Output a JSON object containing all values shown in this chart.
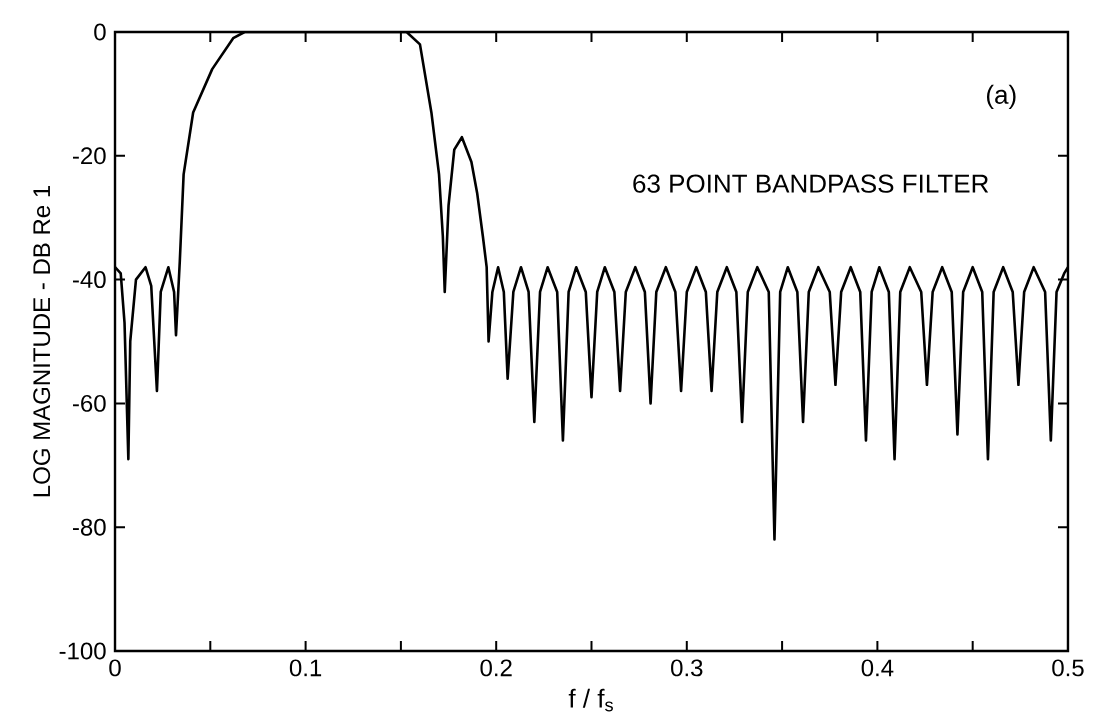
{
  "chart_data": {
    "type": "line",
    "xlabel": "f / f$_{s}$",
    "ylabel": "LOG MAGNITUDE - DB  Re 1",
    "annotations": [
      "(a)",
      "63 POINT BANDPASS FILTER"
    ],
    "color": "#000000",
    "x": [
      0,
      0.003,
      0.005,
      0.007,
      0.008,
      0.011,
      0.016,
      0.019,
      0.022,
      0.024,
      0.028,
      0.031,
      0.032,
      0.034,
      0.036,
      0.041,
      0.051,
      0.062,
      0.068,
      0.153,
      0.16,
      0.166,
      0.17,
      0.172,
      0.173,
      0.175,
      0.178,
      0.182,
      0.187,
      0.19,
      0.193,
      0.195,
      0.196,
      0.198,
      0.201,
      0.204,
      0.206,
      0.209,
      0.213,
      0.217,
      0.22,
      0.223,
      0.227,
      0.232,
      0.235,
      0.238,
      0.242,
      0.247,
      0.25,
      0.253,
      0.257,
      0.262,
      0.265,
      0.268,
      0.273,
      0.278,
      0.281,
      0.284,
      0.289,
      0.294,
      0.297,
      0.3,
      0.305,
      0.31,
      0.313,
      0.316,
      0.321,
      0.326,
      0.329,
      0.332,
      0.337,
      0.343,
      0.346,
      0.349,
      0.353,
      0.358,
      0.361,
      0.364,
      0.369,
      0.375,
      0.378,
      0.381,
      0.386,
      0.391,
      0.394,
      0.397,
      0.401,
      0.406,
      0.409,
      0.412,
      0.417,
      0.423,
      0.426,
      0.429,
      0.434,
      0.439,
      0.442,
      0.445,
      0.45,
      0.455,
      0.458,
      0.461,
      0.466,
      0.471,
      0.474,
      0.477,
      0.482,
      0.488,
      0.491,
      0.494,
      0.498,
      0.5
    ],
    "values": [
      -38,
      -39,
      -47,
      -69,
      -50,
      -40,
      -38,
      -41,
      -58,
      -42,
      -38,
      -42,
      -49,
      -37,
      -23,
      -13,
      -6,
      -1,
      0,
      0,
      -2,
      -13,
      -23,
      -33,
      -42,
      -28,
      -19,
      -17,
      -21,
      -26,
      -33,
      -38,
      -50,
      -42,
      -38,
      -42,
      -56,
      -42,
      -38,
      -42,
      -63,
      -42,
      -38,
      -42,
      -66,
      -42,
      -38,
      -42,
      -59,
      -42,
      -38,
      -42,
      -58,
      -42,
      -38,
      -42,
      -60,
      -42,
      -38,
      -42,
      -58,
      -42,
      -38,
      -42,
      -58,
      -42,
      -38,
      -42,
      -63,
      -42,
      -38,
      -42,
      -82,
      -42,
      -38,
      -42,
      -63,
      -42,
      -38,
      -42,
      -57,
      -42,
      -38,
      -42,
      -66,
      -42,
      -38,
      -42,
      -69,
      -42,
      -38,
      -42,
      -57,
      -42,
      -38,
      -42,
      -65,
      -42,
      -38,
      -42,
      -69,
      -42,
      -38,
      -42,
      -57,
      -42,
      -38,
      -42,
      -66,
      -42,
      -39,
      -38
    ],
    "xlim": [
      0,
      0.5
    ],
    "ylim": [
      -100,
      0
    ],
    "xticks": [
      0,
      {
        "value": 0.05,
        "label": null
      },
      0.1,
      {
        "value": 0.15,
        "label": null
      },
      0.2,
      {
        "value": 0.25,
        "label": null
      },
      0.3,
      {
        "value": 0.35,
        "label": null
      },
      0.4,
      {
        "value": 0.45,
        "label": null
      },
      0.5
    ],
    "yticks": [
      -100,
      -80,
      -60,
      -40,
      -20,
      0
    ]
  }
}
